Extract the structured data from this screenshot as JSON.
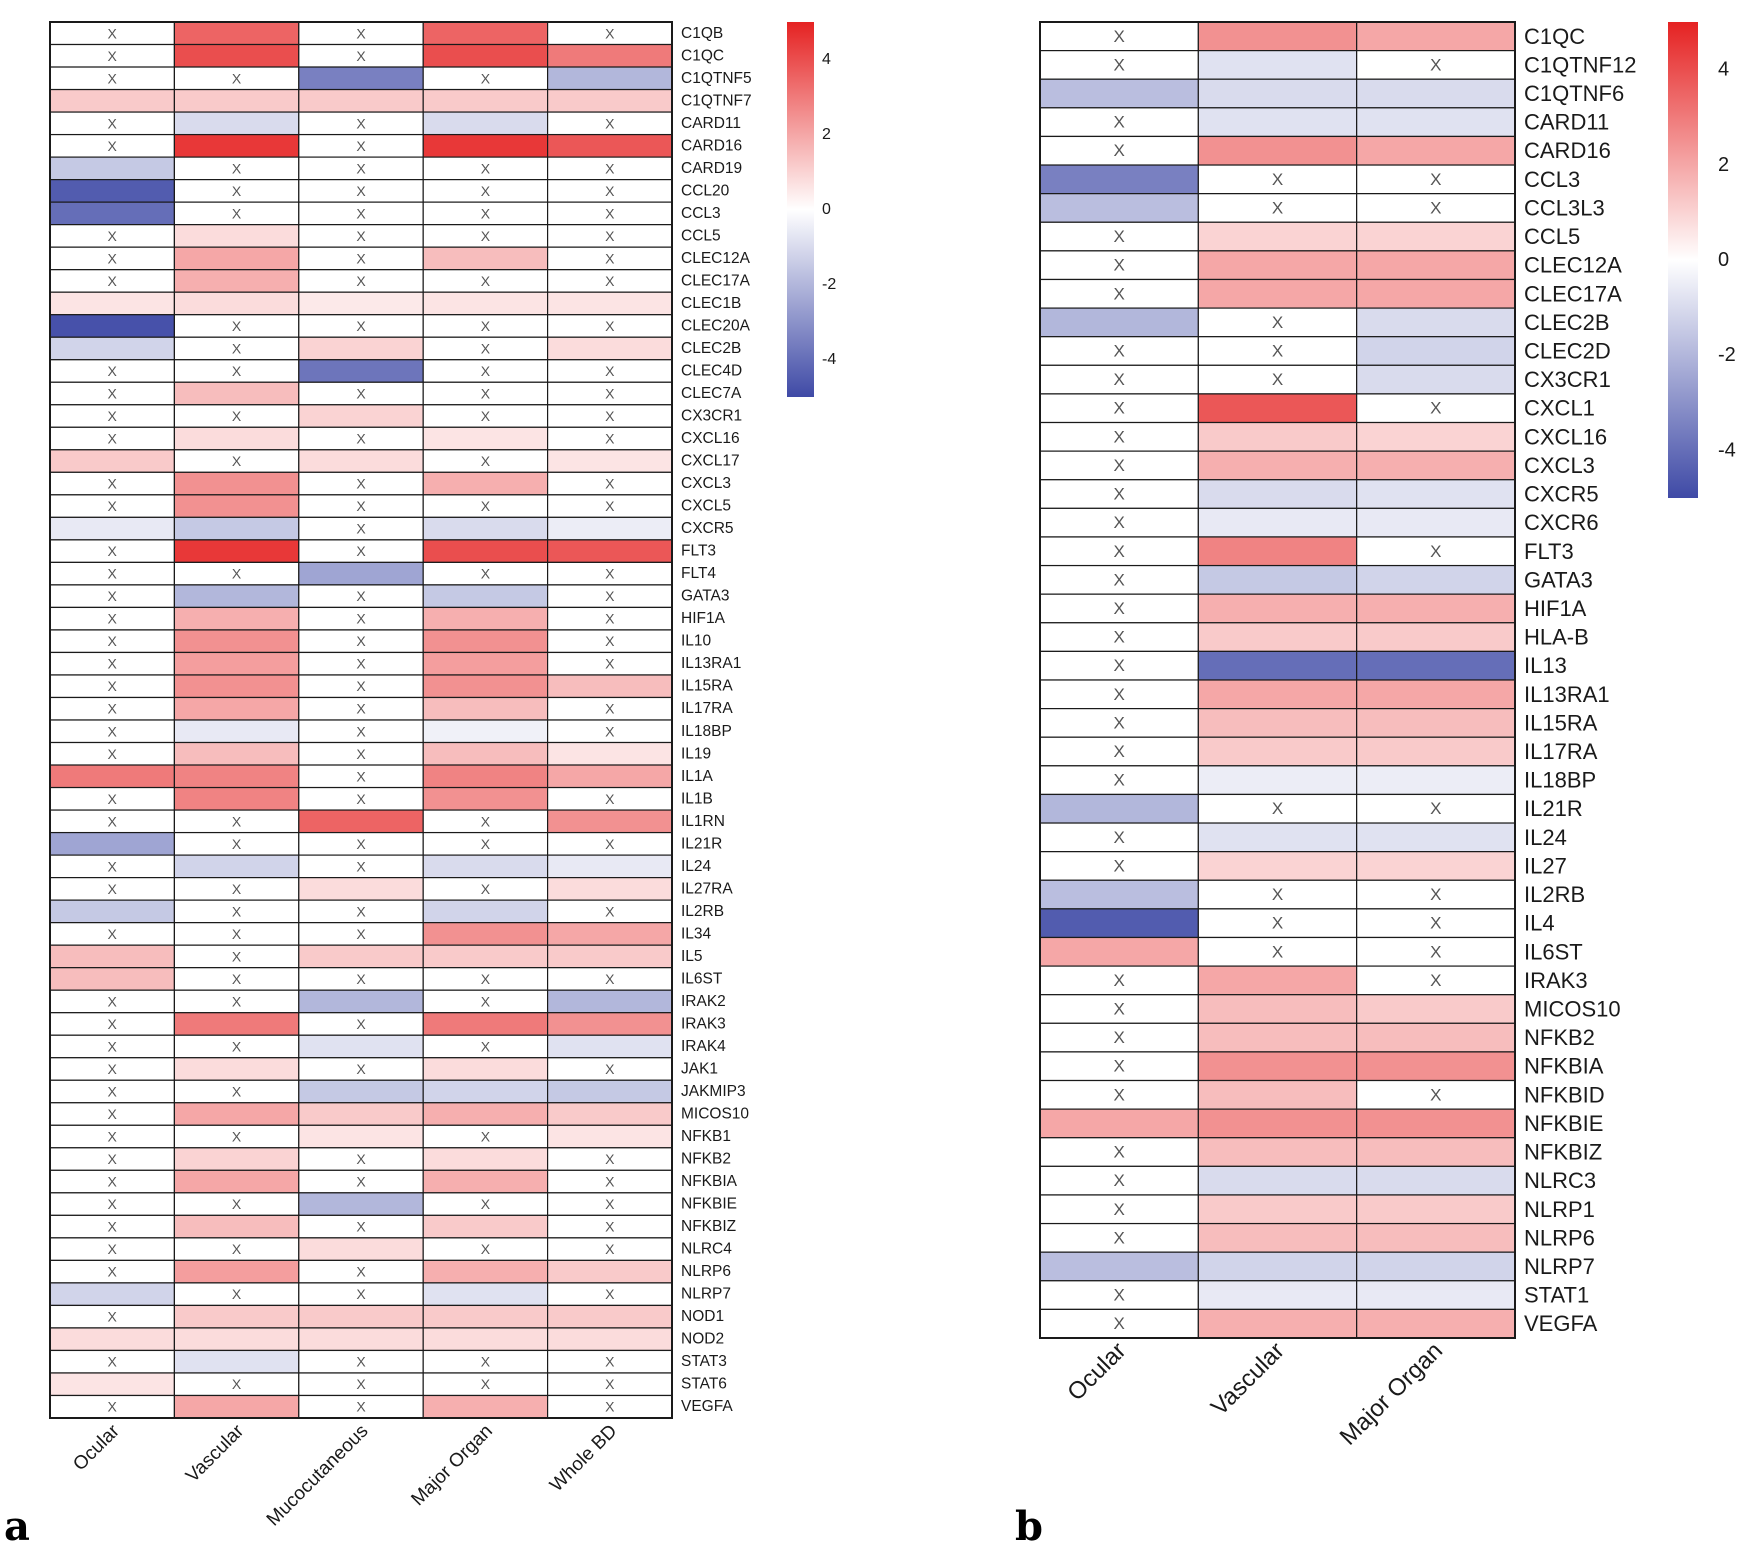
{
  "colors": {
    "low": "#3f4aa6",
    "mid": "#ffffff",
    "high": "#e52222",
    "grid": "#1a1a1a",
    "na_mark": "#555555"
  },
  "chart_data": [
    {
      "type": "heatmap",
      "panel_label": "a",
      "columns": [
        "Ocular",
        "Vascular",
        "Mucocutaneous",
        "Major Organ",
        "Whole BD"
      ],
      "rows": [
        "C1QB",
        "C1QC",
        "C1QTNF5",
        "C1QTNF7",
        "CARD11",
        "CARD16",
        "CARD19",
        "CCL20",
        "CCL3",
        "CCL5",
        "CLEC12A",
        "CLEC17A",
        "CLEC1B",
        "CLEC20A",
        "CLEC2B",
        "CLEC4D",
        "CLEC7A",
        "CX3CR1",
        "CXCL16",
        "CXCL17",
        "CXCL3",
        "CXCL5",
        "CXCR5",
        "FLT3",
        "FLT4",
        "GATA3",
        "HIF1A",
        "IL10",
        "IL13RA1",
        "IL15RA",
        "IL17RA",
        "IL18BP",
        "IL19",
        "IL1A",
        "IL1B",
        "IL1RN",
        "IL21R",
        "IL24",
        "IL27RA",
        "IL2RB",
        "IL34",
        "IL5",
        "IL6ST",
        "IRAK2",
        "IRAK3",
        "IRAK4",
        "JAK1",
        "JAKMIP3",
        "MICOS10",
        "NFKB1",
        "NFKB2",
        "NFKBIA",
        "NFKBIE",
        "NFKBIZ",
        "NLRC4",
        "NLRP6",
        "NLRP7",
        "NOD1",
        "NOD2",
        "STAT3",
        "STAT6",
        "VEGFA"
      ],
      "values": [
        [
          null,
          3.5,
          null,
          3.5,
          null
        ],
        [
          null,
          4.0,
          null,
          4.0,
          3.0
        ],
        [
          null,
          null,
          -3.5,
          null,
          -2.0
        ],
        [
          1.2,
          1.2,
          1.2,
          1.2,
          1.2
        ],
        [
          null,
          -1.0,
          null,
          -1.0,
          null
        ],
        [
          null,
          4.5,
          null,
          4.5,
          3.8
        ],
        [
          -1.5,
          null,
          null,
          null,
          null
        ],
        [
          -4.5,
          null,
          null,
          null,
          null
        ],
        [
          -4.0,
          null,
          null,
          null,
          null
        ],
        [
          null,
          0.8,
          null,
          null,
          null
        ],
        [
          null,
          2.0,
          null,
          1.5,
          null
        ],
        [
          null,
          1.8,
          null,
          null,
          null
        ],
        [
          0.6,
          0.8,
          0.5,
          0.6,
          0.6
        ],
        [
          -4.8,
          null,
          null,
          null,
          null
        ],
        [
          -1.2,
          null,
          1.0,
          null,
          0.8
        ],
        [
          null,
          null,
          -3.8,
          null,
          null
        ],
        [
          null,
          1.5,
          null,
          null,
          null
        ],
        [
          null,
          null,
          1.0,
          null,
          null
        ],
        [
          null,
          0.8,
          null,
          0.6,
          null
        ],
        [
          1.2,
          null,
          0.8,
          null,
          0.6
        ],
        [
          null,
          2.5,
          null,
          1.8,
          null
        ],
        [
          null,
          2.5,
          null,
          null,
          null
        ],
        [
          -0.6,
          -1.5,
          null,
          -1.0,
          -0.5
        ],
        [
          null,
          4.5,
          null,
          4.0,
          3.8
        ],
        [
          null,
          null,
          -2.5,
          null,
          null
        ],
        [
          null,
          -2.0,
          null,
          -1.5,
          null
        ],
        [
          null,
          1.8,
          null,
          1.8,
          null
        ],
        [
          null,
          2.5,
          null,
          2.5,
          null
        ],
        [
          null,
          2.2,
          null,
          2.2,
          null
        ],
        [
          null,
          2.5,
          null,
          2.5,
          1.5
        ],
        [
          null,
          2.0,
          null,
          1.5,
          null
        ],
        [
          null,
          -0.6,
          null,
          -0.4,
          null
        ],
        [
          null,
          1.5,
          null,
          1.5,
          0.6
        ],
        [
          3.0,
          2.8,
          null,
          2.8,
          2.0
        ],
        [
          null,
          2.8,
          null,
          2.5,
          null
        ],
        [
          null,
          null,
          3.5,
          null,
          2.5
        ],
        [
          -2.5,
          null,
          null,
          null,
          null
        ],
        [
          null,
          -1.2,
          null,
          -1.0,
          -0.6
        ],
        [
          null,
          null,
          0.8,
          null,
          0.8
        ],
        [
          -1.5,
          null,
          null,
          -1.2,
          null
        ],
        [
          null,
          null,
          null,
          2.5,
          2.0
        ],
        [
          1.5,
          null,
          1.2,
          1.2,
          1.2
        ],
        [
          1.5,
          null,
          null,
          null,
          null
        ],
        [
          null,
          null,
          -2.0,
          null,
          -2.0
        ],
        [
          null,
          3.0,
          null,
          3.0,
          2.5
        ],
        [
          null,
          null,
          -0.8,
          null,
          -0.8
        ],
        [
          null,
          0.8,
          null,
          0.8,
          null
        ],
        [
          null,
          null,
          -1.5,
          -1.2,
          -1.5
        ],
        [
          null,
          2.0,
          1.2,
          1.8,
          1.2
        ],
        [
          null,
          null,
          0.6,
          null,
          0.6
        ],
        [
          null,
          1.0,
          null,
          0.8,
          null
        ],
        [
          null,
          2.0,
          null,
          1.8,
          null
        ],
        [
          null,
          null,
          -2.0,
          null,
          null
        ],
        [
          null,
          1.5,
          null,
          1.2,
          null
        ],
        [
          null,
          null,
          0.8,
          null,
          null
        ],
        [
          null,
          2.2,
          null,
          1.8,
          1.2
        ],
        [
          -1.2,
          null,
          null,
          -0.8,
          null
        ],
        [
          null,
          1.2,
          1.2,
          1.2,
          1.2
        ],
        [
          0.8,
          0.8,
          0.8,
          0.8,
          0.8
        ],
        [
          null,
          -0.8,
          null,
          null,
          null
        ],
        [
          0.6,
          null,
          null,
          null,
          null
        ],
        [
          null,
          2.0,
          null,
          1.8,
          null
        ]
      ],
      "na_label": "X",
      "legend": {
        "ticks": [
          4,
          2,
          0,
          -2,
          -4
        ],
        "range": [
          -5,
          5
        ]
      }
    },
    {
      "type": "heatmap",
      "panel_label": "b",
      "columns": [
        "Ocular",
        "Vascular",
        "Major Organ"
      ],
      "rows": [
        "C1QC",
        "C1QTNF12",
        "C1QTNF6",
        "CARD11",
        "CARD16",
        "CCL3",
        "CCL3L3",
        "CCL5",
        "CLEC12A",
        "CLEC17A",
        "CLEC2B",
        "CLEC2D",
        "CX3CR1",
        "CXCL1",
        "CXCL16",
        "CXCL3",
        "CXCR5",
        "CXCR6",
        "FLT3",
        "GATA3",
        "HIF1A",
        "HLA-B",
        "IL13",
        "IL13RA1",
        "IL15RA",
        "IL17RA",
        "IL18BP",
        "IL21R",
        "IL24",
        "IL27",
        "IL2RB",
        "IL4",
        "IL6ST",
        "IRAK3",
        "MICOS10",
        "NFKB2",
        "NFKBIA",
        "NFKBID",
        "NFKBIE",
        "NFKBIZ",
        "NLRC3",
        "NLRP1",
        "NLRP6",
        "NLRP7",
        "STAT1",
        "VEGFA"
      ],
      "values": [
        [
          null,
          2.5,
          2.0
        ],
        [
          null,
          -0.8,
          null
        ],
        [
          -1.8,
          -1.0,
          -1.0
        ],
        [
          null,
          -0.8,
          -0.8
        ],
        [
          null,
          2.5,
          2.0
        ],
        [
          -3.5,
          null,
          null
        ],
        [
          -1.8,
          null,
          null
        ],
        [
          null,
          1.0,
          1.0
        ],
        [
          null,
          2.0,
          2.0
        ],
        [
          null,
          2.0,
          2.0
        ],
        [
          -2.0,
          null,
          -1.0
        ],
        [
          null,
          null,
          -1.2
        ],
        [
          null,
          null,
          -1.0
        ],
        [
          null,
          3.8,
          null
        ],
        [
          null,
          1.2,
          1.0
        ],
        [
          null,
          1.8,
          1.8
        ],
        [
          null,
          -1.0,
          -0.8
        ],
        [
          null,
          -0.6,
          -0.6
        ],
        [
          null,
          2.8,
          null
        ],
        [
          null,
          -1.5,
          -1.2
        ],
        [
          null,
          1.8,
          1.8
        ],
        [
          null,
          1.2,
          1.2
        ],
        [
          null,
          -4.0,
          -4.0
        ],
        [
          null,
          2.0,
          2.0
        ],
        [
          null,
          1.5,
          1.5
        ],
        [
          null,
          1.2,
          1.2
        ],
        [
          null,
          -0.5,
          -0.5
        ],
        [
          -2.0,
          null,
          null
        ],
        [
          null,
          -0.8,
          -0.8
        ],
        [
          null,
          1.0,
          1.0
        ],
        [
          -1.8,
          null,
          null
        ],
        [
          -4.5,
          null,
          null
        ],
        [
          2.0,
          null,
          null
        ],
        [
          null,
          2.0,
          null
        ],
        [
          null,
          1.5,
          1.2
        ],
        [
          null,
          1.5,
          1.5
        ],
        [
          null,
          2.5,
          2.5
        ],
        [
          null,
          1.5,
          null
        ],
        [
          2.0,
          2.5,
          2.5
        ],
        [
          null,
          1.5,
          1.5
        ],
        [
          null,
          -1.0,
          -1.0
        ],
        [
          null,
          1.2,
          1.2
        ],
        [
          null,
          1.5,
          1.5
        ],
        [
          -1.8,
          -1.2,
          -1.2
        ],
        [
          null,
          -0.6,
          -0.6
        ],
        [
          null,
          1.8,
          1.8
        ]
      ],
      "na_label": "X",
      "legend": {
        "ticks": [
          4,
          2,
          0,
          -2,
          -4
        ],
        "range": [
          -5,
          5
        ]
      }
    }
  ]
}
